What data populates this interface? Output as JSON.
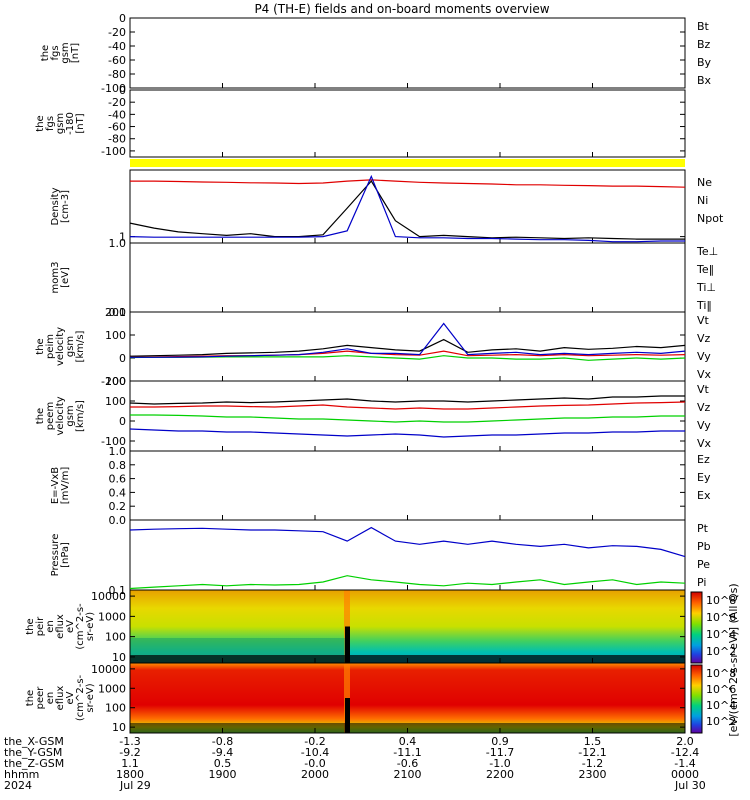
{
  "title": "P4 (TH-E) fields and on-board moments overview",
  "colors": {
    "black": "#000000",
    "red": "#e00000",
    "green": "#00d000",
    "blue": "#0000c8",
    "yellow": "#ffff00"
  },
  "chart_data": [
    {
      "type": "line",
      "id": "fgs1",
      "ylabel": [
        "the",
        "fgs",
        "gsm",
        "[nT]"
      ],
      "ylim": [
        -100,
        0
      ],
      "ticks": [
        "0",
        "-20",
        "-40",
        "-60",
        "-80",
        "-100"
      ],
      "legend": [
        {
          "name": "Bt",
          "color": "#000000"
        },
        {
          "name": "Bz",
          "color": "#e00000"
        },
        {
          "name": "By",
          "color": "#00d000"
        },
        {
          "name": "Bx",
          "color": "#0000c8"
        }
      ],
      "series": []
    },
    {
      "type": "line",
      "id": "fgs2",
      "ylabel": [
        "the",
        "fgs",
        "gsm",
        "-180",
        "[nT]"
      ],
      "ylim": [
        -110,
        0
      ],
      "ticks": [
        "0",
        "-20",
        "-40",
        "-60",
        "-80",
        "-100"
      ],
      "series": []
    },
    {
      "type": "line",
      "id": "density",
      "ylabel": [
        "Density",
        "[cm-3]"
      ],
      "scale": "log",
      "ylim": [
        0.9,
        3
      ],
      "ticks": [
        "1"
      ],
      "legend": [
        {
          "name": "Ne",
          "color": "#e00000"
        },
        {
          "name": "Ni",
          "color": "#000000"
        },
        {
          "name": "Npot",
          "color": "#0000c8"
        }
      ],
      "series": [
        {
          "color": "#e00000",
          "values": [
            2.5,
            2.5,
            2.48,
            2.46,
            2.45,
            2.43,
            2.42,
            2.4,
            2.42,
            2.5,
            2.55,
            2.5,
            2.45,
            2.42,
            2.4,
            2.38,
            2.35,
            2.35,
            2.33,
            2.32,
            2.3,
            2.3,
            2.28,
            2.26
          ]
        },
        {
          "color": "#000000",
          "values": [
            1.25,
            1.15,
            1.08,
            1.05,
            1.02,
            1.05,
            1.0,
            1.0,
            1.03,
            1.6,
            2.5,
            1.3,
            1.0,
            1.02,
            1.0,
            0.98,
            0.99,
            0.98,
            0.97,
            0.98,
            0.97,
            0.96,
            0.96,
            0.96
          ]
        },
        {
          "color": "#0000c8",
          "values": [
            1.0,
            0.99,
            0.99,
            0.99,
            0.99,
            0.99,
            0.99,
            0.99,
            1.0,
            1.1,
            2.7,
            1.0,
            0.98,
            0.98,
            0.97,
            0.97,
            0.96,
            0.95,
            0.95,
            0.94,
            0.92,
            0.92,
            0.93,
            0.93
          ]
        }
      ]
    },
    {
      "type": "line",
      "id": "temperature",
      "ylabel": [
        "mom3",
        "[eV]"
      ],
      "scale": "log",
      "ylim": [
        0.1,
        1.0
      ],
      "ticks": [
        "1.0",
        "0.1"
      ],
      "legend": [
        {
          "name": "Te⊥",
          "color": "#e00000"
        },
        {
          "name": "Te‖",
          "color": "#000000"
        },
        {
          "name": "Ti⊥",
          "color": "#0000c8"
        },
        {
          "name": "Ti‖",
          "color": "#00d000"
        }
      ],
      "series": []
    },
    {
      "type": "line",
      "id": "peim",
      "ylabel": [
        "the",
        "peim",
        "velocity",
        "gsm",
        "[km/s]"
      ],
      "ylim": [
        -100,
        200
      ],
      "ticks": [
        "200",
        "100",
        "0",
        "-100"
      ],
      "legend": [
        {
          "name": "Vt",
          "color": "#000000"
        },
        {
          "name": "Vz",
          "color": "#e00000"
        },
        {
          "name": "Vy",
          "color": "#00d000"
        },
        {
          "name": "Vx",
          "color": "#0000c8"
        }
      ],
      "series": [
        {
          "name": "Vt",
          "color": "#000000",
          "values": [
            8,
            10,
            12,
            15,
            20,
            22,
            25,
            30,
            40,
            55,
            45,
            35,
            30,
            80,
            25,
            35,
            40,
            30,
            45,
            38,
            42,
            50,
            45,
            55
          ]
        },
        {
          "name": "Vz",
          "color": "#e00000",
          "values": [
            4,
            5,
            6,
            8,
            10,
            10,
            12,
            15,
            20,
            30,
            20,
            15,
            12,
            30,
            10,
            12,
            15,
            10,
            15,
            10,
            12,
            15,
            12,
            15
          ]
        },
        {
          "name": "Vy",
          "color": "#00d000",
          "values": [
            2,
            3,
            3,
            4,
            5,
            5,
            5,
            5,
            5,
            10,
            5,
            0,
            -5,
            10,
            0,
            0,
            -5,
            -5,
            0,
            -10,
            -5,
            0,
            -5,
            0
          ]
        },
        {
          "name": "Vx",
          "color": "#0000c8",
          "values": [
            3,
            3,
            4,
            5,
            8,
            10,
            12,
            15,
            25,
            40,
            20,
            20,
            15,
            150,
            15,
            20,
            25,
            15,
            20,
            15,
            20,
            25,
            20,
            30
          ]
        }
      ]
    },
    {
      "type": "line",
      "id": "peem",
      "ylabel": [
        "the",
        "peem",
        "velocity",
        "gsm",
        "[km/s]"
      ],
      "ylim": [
        -150,
        200
      ],
      "ticks": [
        "200",
        "100",
        "0",
        "-100"
      ],
      "legend": [
        {
          "name": "Vt",
          "color": "#000000"
        },
        {
          "name": "Vz",
          "color": "#e00000"
        },
        {
          "name": "Vy",
          "color": "#00d000"
        },
        {
          "name": "Vx",
          "color": "#0000c8"
        }
      ],
      "series": [
        {
          "name": "Vt",
          "color": "#000000",
          "values": [
            90,
            85,
            88,
            90,
            95,
            92,
            95,
            100,
            105,
            110,
            100,
            95,
            100,
            100,
            95,
            100,
            105,
            110,
            115,
            110,
            120,
            120,
            125,
            125
          ]
        },
        {
          "name": "Vz",
          "color": "#e00000",
          "values": [
            70,
            70,
            72,
            75,
            75,
            72,
            70,
            75,
            80,
            70,
            65,
            60,
            65,
            60,
            60,
            65,
            70,
            75,
            78,
            80,
            85,
            90,
            92,
            95
          ]
        },
        {
          "name": "Vy",
          "color": "#00d000",
          "values": [
            30,
            30,
            28,
            25,
            20,
            20,
            15,
            10,
            10,
            5,
            0,
            -5,
            0,
            -5,
            -5,
            0,
            5,
            10,
            15,
            15,
            20,
            20,
            25,
            25
          ]
        },
        {
          "name": "Vx",
          "color": "#0000c8",
          "values": [
            -40,
            -45,
            -50,
            -50,
            -55,
            -55,
            -60,
            -65,
            -70,
            -75,
            -70,
            -65,
            -70,
            -80,
            -75,
            -70,
            -70,
            -65,
            -60,
            -60,
            -55,
            -55,
            -50,
            -50
          ]
        }
      ]
    },
    {
      "type": "line",
      "id": "efield",
      "ylabel": [
        "E=-VxB",
        "[mV/m]"
      ],
      "ylim": [
        0.0,
        1.0
      ],
      "ticks": [
        "1.0",
        "0.8",
        "0.6",
        "0.4",
        "0.2",
        "0.0"
      ],
      "legend": [
        {
          "name": "Ez",
          "color": "#e00000"
        },
        {
          "name": "Ey",
          "color": "#00d000"
        },
        {
          "name": "Ex",
          "color": "#0000c8"
        }
      ],
      "series": []
    },
    {
      "type": "line",
      "id": "pressure",
      "ylabel": [
        "Pressure",
        "[nPa]"
      ],
      "scale": "log",
      "ylim": [
        0.1,
        1.0
      ],
      "ticks": [
        "0.1"
      ],
      "legend": [
        {
          "name": "Pt",
          "color": "#000000"
        },
        {
          "name": "Pb",
          "color": "#e00000"
        },
        {
          "name": "Pe",
          "color": "#00d000"
        },
        {
          "name": "Pi",
          "color": "#0000c8"
        }
      ],
      "series": [
        {
          "name": "Pi",
          "color": "#0000c8",
          "values": [
            0.72,
            0.74,
            0.75,
            0.76,
            0.74,
            0.72,
            0.72,
            0.7,
            0.68,
            0.5,
            0.78,
            0.5,
            0.45,
            0.5,
            0.45,
            0.5,
            0.45,
            0.42,
            0.45,
            0.4,
            0.43,
            0.42,
            0.38,
            0.3
          ]
        },
        {
          "name": "Pe",
          "color": "#00d000",
          "values": [
            0.105,
            0.11,
            0.115,
            0.12,
            0.115,
            0.12,
            0.118,
            0.12,
            0.13,
            0.16,
            0.14,
            0.13,
            0.12,
            0.115,
            0.125,
            0.12,
            0.13,
            0.14,
            0.12,
            0.13,
            0.14,
            0.12,
            0.13,
            0.125
          ]
        }
      ]
    },
    {
      "type": "heatmap",
      "id": "peir",
      "ylabel": [
        "the",
        "peir",
        "en",
        "eflux",
        "eV",
        "(cm^2-s-",
        "sr-eV)"
      ],
      "scale": "log",
      "ylim": [
        5,
        20000
      ],
      "ticks": [
        "10000",
        "1000",
        "100",
        "10"
      ]
    },
    {
      "type": "heatmap",
      "id": "peer",
      "ylabel": [
        "the",
        "peer",
        "en",
        "eflux",
        "eV",
        "(cm^2-s-",
        "sr-eV)"
      ],
      "scale": "log",
      "ylim": [
        5,
        20000
      ],
      "ticks": [
        "10000",
        "1000",
        "100",
        "10"
      ]
    }
  ],
  "colorbar": {
    "label": "[eV/(cm^2-s-sr-eV)] (All Qs)",
    "ticks": [
      "10^8",
      "10^6",
      "10^4",
      "10^2"
    ],
    "ticks_lower": [
      "10^8",
      "10^6",
      "10^4",
      "10^2"
    ]
  },
  "x_axis": {
    "row_labels": [
      "the_X-GSM",
      "the_Y-GSM",
      "the_Z-GSM",
      "hhmm",
      "2024"
    ],
    "columns": [
      {
        "x": "-1.3",
        "y": "-9.2",
        "z": "1.1",
        "hhmm": "1800",
        "date": "Jul 29"
      },
      {
        "x": "-0.8",
        "y": "-9.4",
        "z": "0.5",
        "hhmm": "1900",
        "date": ""
      },
      {
        "x": "-0.2",
        "y": "-10.4",
        "z": "-0.0",
        "hhmm": "2000",
        "date": ""
      },
      {
        "x": "0.4",
        "y": "-11.1",
        "z": "-0.6",
        "hhmm": "2100",
        "date": ""
      },
      {
        "x": "0.9",
        "y": "-11.7",
        "z": "-1.0",
        "hhmm": "2200",
        "date": ""
      },
      {
        "x": "1.5",
        "y": "-12.1",
        "z": "-1.2",
        "hhmm": "2300",
        "date": ""
      },
      {
        "x": "2.0",
        "y": "-12.4",
        "z": "-1.4",
        "hhmm": "0000",
        "date": "Jul 30"
      }
    ]
  }
}
